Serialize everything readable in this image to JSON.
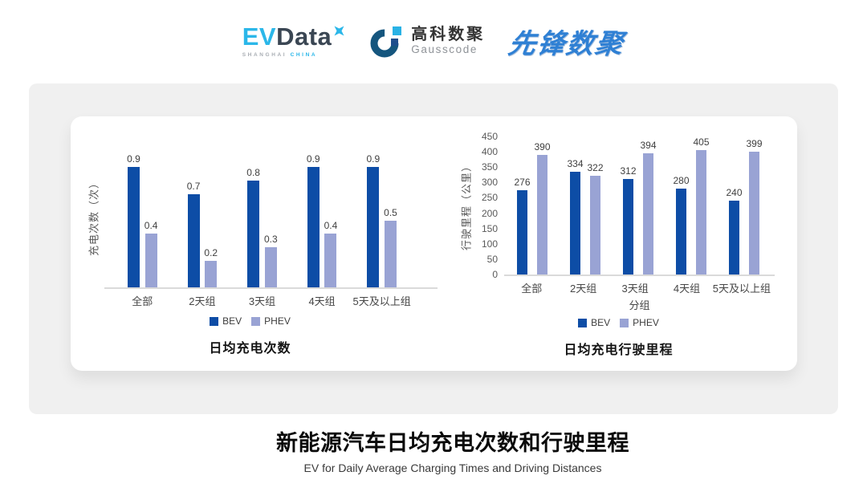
{
  "header": {
    "evdata": {
      "ev": "EV",
      "data": "Data",
      "sub_left": "SHANGHAI",
      "sub_right": "CHINA"
    },
    "gausscode": {
      "cn": "高科数聚",
      "en": "Gausscode"
    },
    "pioneer": {
      "text": "先锋数聚"
    }
  },
  "colors": {
    "bev": "#0d4da6",
    "phev": "#99a3d4",
    "axis_line": "#dadada",
    "evdata_cyan": "#2bb7e9",
    "evdata_navy": "#3a4653",
    "gausscode_navy": "#15567e",
    "gausscode_cyan": "#29b2e5",
    "gausscode_square_navy": "#1d4e8c",
    "pioneer_blue": "#2f80d4",
    "card_bg": "#f0f0f0"
  },
  "chart_data": [
    {
      "type": "bar",
      "title": "日均充电次数",
      "ylabel": "充电次数（次）",
      "xlabel": "",
      "categories": [
        "全部",
        "2天组",
        "3天组",
        "4天组",
        "5天及以上组"
      ],
      "series": [
        {
          "name": "BEV",
          "values": [
            0.9,
            0.7,
            0.8,
            0.9,
            0.9
          ]
        },
        {
          "name": "PHEV",
          "values": [
            0.4,
            0.2,
            0.3,
            0.4,
            0.5
          ]
        }
      ],
      "ylim": [
        0,
        1.1
      ],
      "yticks": [],
      "grid": false,
      "legend_position": "bottom",
      "data_labels": true
    },
    {
      "type": "bar",
      "title": "日均充电行驶里程",
      "ylabel": "行驶里程（公里）",
      "xlabel": "分组",
      "categories": [
        "全部",
        "2天组",
        "3天组",
        "4天组",
        "5天及以上组"
      ],
      "series": [
        {
          "name": "BEV",
          "values": [
            276,
            334,
            312,
            280,
            240
          ]
        },
        {
          "name": "PHEV",
          "values": [
            390,
            322,
            394,
            405,
            399
          ]
        }
      ],
      "ylim": [
        0,
        450
      ],
      "yticks": [
        450,
        400,
        350,
        300,
        250,
        200,
        150,
        100,
        50,
        0
      ],
      "grid": false,
      "legend_position": "bottom",
      "data_labels": true
    }
  ],
  "footer": {
    "title": "新能源汽车日均充电次数和行驶里程",
    "subtitle": "EV for Daily Average Charging Times and Driving Distances"
  }
}
